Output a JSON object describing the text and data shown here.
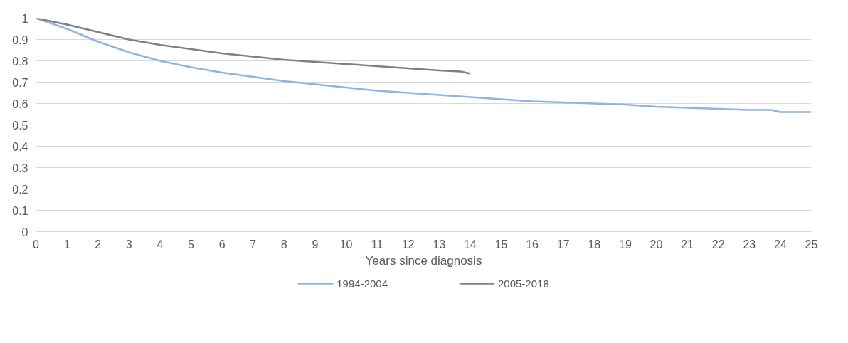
{
  "chart_data": {
    "type": "line",
    "xlabel": "Years since diagnosis",
    "xlim": [
      0,
      25
    ],
    "xticks": [
      0,
      1,
      2,
      3,
      4,
      5,
      6,
      7,
      8,
      9,
      10,
      11,
      12,
      13,
      14,
      15,
      16,
      17,
      18,
      19,
      20,
      21,
      22,
      23,
      24,
      25
    ],
    "ylim": [
      0,
      1
    ],
    "yticks": [
      0,
      0.1,
      0.2,
      0.3,
      0.4,
      0.5,
      0.6,
      0.7,
      0.8,
      0.9,
      1
    ],
    "grid": "y",
    "legend": "bottom",
    "marker": "none",
    "line_style": "solid",
    "series": [
      {
        "name": "1994-2004",
        "color": "#8db4e2",
        "x": [
          0,
          1,
          2,
          3,
          4,
          5,
          6,
          7,
          8,
          9,
          10,
          11,
          12,
          13,
          14,
          15,
          16,
          17,
          18,
          19,
          20,
          21,
          22,
          23,
          23.7,
          24,
          25
        ],
        "values": [
          1.0,
          0.95,
          0.89,
          0.84,
          0.8,
          0.77,
          0.745,
          0.725,
          0.705,
          0.69,
          0.675,
          0.66,
          0.65,
          0.64,
          0.63,
          0.62,
          0.61,
          0.605,
          0.6,
          0.595,
          0.585,
          0.58,
          0.575,
          0.57,
          0.57,
          0.56,
          0.56
        ]
      },
      {
        "name": "2005-2018",
        "color": "#808080",
        "x": [
          0,
          1,
          2,
          3,
          4,
          5,
          6,
          7,
          8,
          9,
          10,
          11,
          12,
          13,
          13.7,
          14
        ],
        "values": [
          1.0,
          0.97,
          0.935,
          0.9,
          0.875,
          0.855,
          0.835,
          0.82,
          0.805,
          0.795,
          0.785,
          0.775,
          0.765,
          0.755,
          0.75,
          0.74
        ]
      }
    ]
  }
}
